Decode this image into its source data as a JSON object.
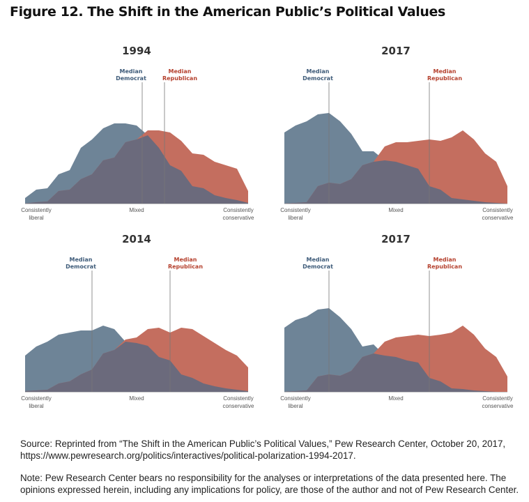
{
  "figure_title": "Figure 12. The Shift in the American Public’s Political Values",
  "colors": {
    "democrat": "#6e8497",
    "republican": "#c46e5f",
    "overlap": "#6b6a7c",
    "median_line": "#777777",
    "democrat_label": "#3e5b79",
    "republican_label": "#b5412e"
  },
  "labels": {
    "median_democrat": [
      "Median",
      "Democrat"
    ],
    "median_republican": [
      "Median",
      "Republican"
    ],
    "left": [
      "Consistently",
      "liberal"
    ],
    "middle": "Mixed",
    "right": [
      "Consistently",
      "conservative"
    ]
  },
  "chart_data": [
    {
      "type": "area",
      "title": "1994",
      "x_scale": [
        -10,
        10
      ],
      "series": [
        {
          "name": "Democrat",
          "x": [
            -10,
            -9,
            -8,
            -7,
            -6,
            -5,
            -4,
            -3,
            -2,
            -1,
            0,
            1,
            2,
            3,
            4,
            5,
            6,
            7,
            8,
            9,
            10
          ],
          "values": [
            8,
            20,
            22,
            42,
            48,
            80,
            92,
            108,
            115,
            115,
            112,
            98,
            80,
            55,
            47,
            25,
            22,
            12,
            8,
            5,
            1
          ]
        },
        {
          "name": "Republican",
          "x": [
            -10,
            -9,
            -8,
            -7,
            -6,
            -5,
            -4,
            -3,
            -2,
            -1,
            0,
            1,
            2,
            3,
            4,
            5,
            6,
            7,
            8,
            9,
            10
          ],
          "values": [
            0,
            2,
            3,
            18,
            20,
            35,
            42,
            62,
            66,
            88,
            92,
            105,
            105,
            102,
            90,
            72,
            70,
            60,
            55,
            50,
            18
          ]
        }
      ],
      "median_democrat_x": 0.5,
      "median_republican_x": 2.5
    },
    {
      "type": "area",
      "title": "2017",
      "x_scale": [
        -10,
        10
      ],
      "series": [
        {
          "name": "Democrat",
          "x": [
            -10,
            -9,
            -8,
            -7,
            -6,
            -5,
            -4,
            -3,
            -2,
            -1,
            0,
            1,
            2,
            3,
            4,
            5,
            6,
            7,
            8,
            9,
            10
          ],
          "values": [
            102,
            112,
            118,
            128,
            130,
            118,
            100,
            75,
            75,
            62,
            60,
            55,
            50,
            25,
            20,
            8,
            6,
            4,
            2,
            1,
            0
          ]
        },
        {
          "name": "Republican",
          "x": [
            -10,
            -9,
            -8,
            -7,
            -6,
            -5,
            -4,
            -3,
            -2,
            -1,
            0,
            1,
            2,
            3,
            4,
            5,
            6,
            7,
            8,
            9,
            10
          ],
          "values": [
            0,
            1,
            2,
            25,
            30,
            28,
            35,
            55,
            60,
            82,
            88,
            88,
            90,
            92,
            90,
            95,
            105,
            92,
            72,
            60,
            25
          ]
        }
      ],
      "median_democrat_x": -6,
      "median_republican_x": 3
    },
    {
      "type": "area",
      "title": "2014",
      "x_scale": [
        -10,
        10
      ],
      "series": [
        {
          "name": "Democrat",
          "x": [
            -10,
            -9,
            -8,
            -7,
            -6,
            -5,
            -4,
            -3,
            -2,
            -1,
            0,
            1,
            2,
            3,
            4,
            5,
            6,
            7,
            8,
            9,
            10
          ],
          "values": [
            52,
            65,
            72,
            82,
            85,
            88,
            88,
            95,
            90,
            72,
            70,
            66,
            50,
            45,
            25,
            20,
            12,
            8,
            5,
            3,
            1
          ]
        },
        {
          "name": "Republican",
          "x": [
            -10,
            -9,
            -8,
            -7,
            -6,
            -5,
            -4,
            -3,
            -2,
            -1,
            0,
            1,
            2,
            3,
            4,
            5,
            6,
            7,
            8,
            9,
            10
          ],
          "values": [
            1,
            2,
            3,
            12,
            15,
            25,
            32,
            55,
            60,
            75,
            78,
            90,
            92,
            85,
            92,
            90,
            80,
            70,
            60,
            52,
            35
          ]
        }
      ],
      "median_democrat_x": -4,
      "median_republican_x": 3
    },
    {
      "type": "area",
      "title": "2017",
      "x_scale": [
        -10,
        10
      ],
      "series": [
        {
          "name": "Democrat",
          "x": [
            -10,
            -9,
            -8,
            -7,
            -6,
            -5,
            -4,
            -3,
            -2,
            -1,
            0,
            1,
            2,
            3,
            4,
            5,
            6,
            7,
            8,
            9,
            10
          ],
          "values": [
            92,
            103,
            108,
            118,
            120,
            107,
            90,
            65,
            68,
            52,
            50,
            45,
            42,
            20,
            15,
            5,
            4,
            2,
            1,
            0,
            0
          ]
        },
        {
          "name": "Republican",
          "x": [
            -10,
            -9,
            -8,
            -7,
            -6,
            -5,
            -4,
            -3,
            -2,
            -1,
            0,
            1,
            2,
            3,
            4,
            5,
            6,
            7,
            8,
            9,
            10
          ],
          "values": [
            0,
            1,
            2,
            22,
            25,
            23,
            30,
            50,
            55,
            72,
            78,
            80,
            82,
            80,
            82,
            85,
            95,
            82,
            62,
            50,
            22
          ]
        }
      ],
      "median_democrat_x": -6,
      "median_republican_x": 3
    }
  ],
  "source": "Source: Reprinted from “The Shift in the American Public’s Political Values,” Pew Research Center, October 20, 2017, https://www.pewresearch.org/politics/interactives/political-polarization-1994-2017.",
  "note": "Note: Pew Research Center bears no responsibility for the analyses or interpretations of the data presented here. The opinions expressed herein, including any implications for policy, are those of the author and not of Pew Research Center."
}
